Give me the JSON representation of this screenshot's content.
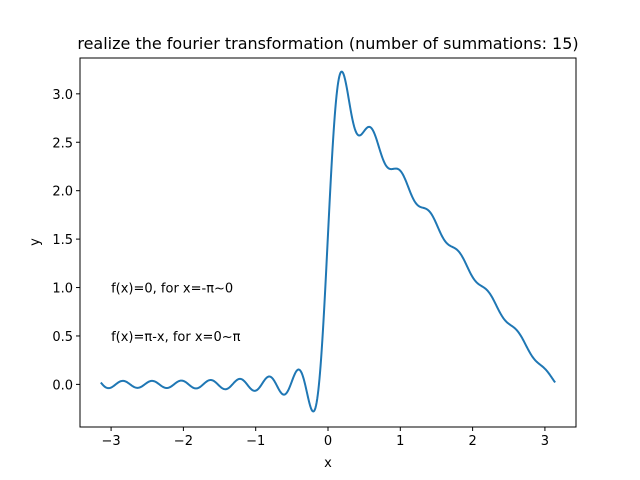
{
  "chart_data": {
    "type": "line",
    "title": "realize the fourier transformation (number of summations: 15)",
    "xlabel": "x",
    "ylabel": "y",
    "xlim": [
      -3.43,
      3.43
    ],
    "ylim": [
      -0.44,
      3.37
    ],
    "xticks": [
      -3,
      -2,
      -1,
      0,
      1,
      2,
      3
    ],
    "xtick_labels": [
      "−3",
      "−2",
      "−1",
      "0",
      "1",
      "2",
      "3"
    ],
    "yticks": [
      0.0,
      0.5,
      1.0,
      1.5,
      2.0,
      2.5,
      3.0
    ],
    "ytick_labels": [
      "0.0",
      "0.5",
      "1.0",
      "1.5",
      "2.0",
      "2.5",
      "3.0"
    ],
    "grid": false,
    "legend": "none",
    "series": [
      {
        "color": "#1f77b4",
        "function": "fourier_partial_sum",
        "terms": 15,
        "x": [
          -3.1416,
          -2.5,
          -2.0,
          -1.5,
          -1.0,
          -0.5,
          -0.2,
          0.0,
          0.2,
          0.5,
          1.0,
          1.5,
          2.0,
          2.5,
          3.1416
        ],
        "y": [
          0.02,
          0.03,
          0.02,
          0.01,
          0.03,
          0.12,
          -0.27,
          1.57,
          3.21,
          2.6,
          2.16,
          1.71,
          1.26,
          0.75,
          0.02
        ]
      }
    ],
    "annotations": [
      {
        "text": "f(x)=0, for x=-π~0",
        "x": -3.0,
        "y": 1.0
      },
      {
        "text": "f(x)=π-x, for x=0~π",
        "x": -3.0,
        "y": 0.5
      }
    ]
  }
}
